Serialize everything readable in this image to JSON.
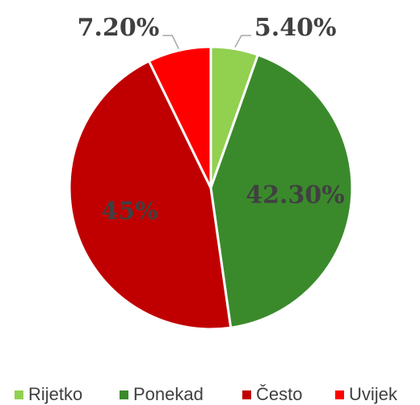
{
  "chart_data": {
    "type": "pie",
    "categories": [
      "Rijetko",
      "Ponekad",
      "Često",
      "Uvijek"
    ],
    "values": [
      5.4,
      42.3,
      45,
      7.2
    ],
    "value_labels": [
      "5.40%",
      "42.30%",
      "45%",
      "7.20%"
    ],
    "colors": [
      "#92d050",
      "#3a8a2c",
      "#c00000",
      "#ff0000"
    ],
    "legend": "bottom"
  }
}
